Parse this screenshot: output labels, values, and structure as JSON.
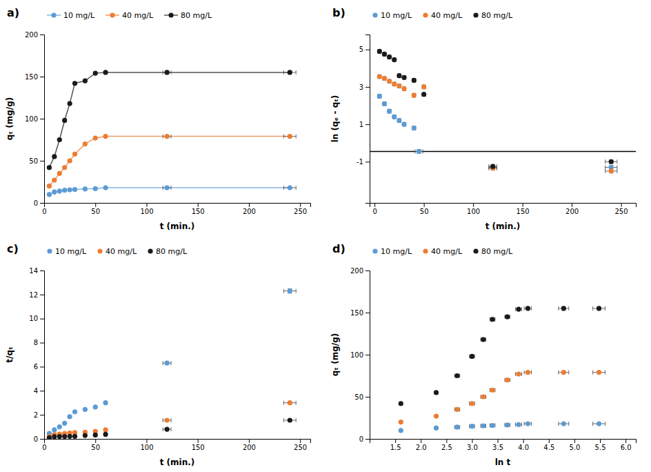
{
  "chart_data": [
    {
      "type": "line",
      "title": "a)",
      "xlabel": "t (min.)",
      "ylabel": "qₜ (mg/g)",
      "xlim": [
        0,
        260
      ],
      "ylim": [
        0,
        200
      ],
      "xticks": [
        0,
        50,
        100,
        150,
        200,
        250
      ],
      "yticks": [
        0,
        50,
        100,
        150,
        200
      ],
      "legend": "top",
      "series": [
        {
          "name": "10 mg/L",
          "color": "#5B9BD5",
          "x": [
            5,
            10,
            15,
            20,
            25,
            30,
            40,
            50,
            60,
            120,
            240
          ],
          "values": [
            10,
            13,
            14,
            15,
            15.5,
            16,
            16.5,
            17,
            18,
            18,
            18
          ],
          "xerr": [
            0,
            0,
            0,
            0,
            0,
            0,
            0,
            0,
            0,
            4,
            6
          ],
          "yerr": [
            0.4,
            0.4,
            0.4,
            0.4,
            0.4,
            0.4,
            0.4,
            0.4,
            0.4,
            0.4,
            0.4
          ]
        },
        {
          "name": "40 mg/L",
          "color": "#ED7D31",
          "x": [
            5,
            10,
            15,
            20,
            25,
            30,
            40,
            50,
            60,
            120,
            240
          ],
          "values": [
            20,
            27,
            35,
            42,
            50,
            58,
            70,
            77,
            79,
            79,
            79
          ],
          "xerr": [
            0,
            0,
            0,
            0,
            0,
            0,
            0,
            0,
            0,
            4,
            6
          ],
          "yerr": [
            1,
            1,
            1,
            1,
            1,
            1,
            1,
            1,
            1,
            1,
            1
          ]
        },
        {
          "name": "80 mg/L",
          "color": "#1a1a1a",
          "x": [
            5,
            10,
            15,
            20,
            25,
            30,
            40,
            50,
            60,
            120,
            240
          ],
          "values": [
            42,
            55,
            75,
            98,
            118,
            142,
            145,
            154,
            155,
            155,
            155
          ],
          "xerr": [
            0,
            0,
            0,
            0,
            0,
            0,
            0,
            0,
            0,
            4,
            6
          ],
          "yerr": [
            1.5,
            1.5,
            1.5,
            1.5,
            1.5,
            1.5,
            1.5,
            1.5,
            1.5,
            1.5,
            1.5
          ]
        }
      ]
    },
    {
      "type": "scatter",
      "title": "b)",
      "xlabel": "t (min.)",
      "ylabel": "ln (qₑ - qₜ)",
      "xlim": [
        -5,
        265
      ],
      "ylim": [
        -3.2,
        5.8
      ],
      "xticks": [
        0,
        50,
        100,
        150,
        200,
        250
      ],
      "yticks": [
        -1,
        1,
        3,
        5
      ],
      "hline_y": -0.45,
      "legend": "top",
      "series": [
        {
          "name": "10 mg/L",
          "color": "#5B9BD5",
          "x": [
            5,
            10,
            15,
            20,
            25,
            30,
            40,
            45,
            120,
            240
          ],
          "values": [
            2.5,
            2.1,
            1.7,
            1.4,
            1.2,
            1.0,
            0.8,
            -0.45,
            -1.3,
            -1.3
          ],
          "xerr": [
            0,
            0,
            0,
            0,
            0,
            0,
            0,
            4,
            4,
            6
          ],
          "yerr": [
            0.1,
            0.1,
            0.1,
            0.1,
            0.1,
            0.1,
            0.1,
            0.1,
            0.1,
            0.1
          ]
        },
        {
          "name": "40 mg/L",
          "color": "#ED7D31",
          "x": [
            5,
            10,
            15,
            20,
            25,
            30,
            40,
            50,
            120,
            240
          ],
          "values": [
            3.55,
            3.45,
            3.3,
            3.15,
            3.05,
            2.9,
            2.55,
            3.0,
            -1.35,
            -1.5
          ],
          "xerr": [
            0,
            0,
            0,
            0,
            0,
            0,
            0,
            0,
            4,
            6
          ],
          "yerr": [
            0.1,
            0.1,
            0.1,
            0.1,
            0.1,
            0.1,
            0.1,
            0.1,
            0.1,
            0.1
          ]
        },
        {
          "name": "80 mg/L",
          "color": "#1a1a1a",
          "x": [
            5,
            10,
            15,
            20,
            25,
            30,
            40,
            50,
            120,
            240
          ],
          "values": [
            4.9,
            4.75,
            4.6,
            4.45,
            3.6,
            3.5,
            3.35,
            2.6,
            -1.25,
            -1.0
          ],
          "xerr": [
            0,
            0,
            0,
            0,
            0,
            0,
            0,
            0,
            4,
            6
          ],
          "yerr": [
            0.1,
            0.1,
            0.1,
            0.1,
            0.1,
            0.1,
            0.1,
            0.1,
            0.1,
            0.1
          ]
        }
      ]
    },
    {
      "type": "scatter",
      "title": "c)",
      "xlabel": "t (min.)",
      "ylabel": "t/qₜ",
      "xlim": [
        0,
        260
      ],
      "ylim": [
        0,
        14
      ],
      "xticks": [
        0,
        50,
        100,
        150,
        200,
        250
      ],
      "yticks": [
        0,
        2,
        4,
        6,
        8,
        10,
        12,
        14
      ],
      "legend": "top",
      "series": [
        {
          "name": "10 mg/L",
          "color": "#5B9BD5",
          "x": [
            5,
            10,
            15,
            20,
            25,
            30,
            40,
            50,
            60,
            120,
            240
          ],
          "values": [
            0.45,
            0.75,
            1.0,
            1.3,
            1.85,
            2.25,
            2.45,
            2.65,
            3.0,
            6.3,
            12.3
          ],
          "xerr": [
            0,
            0,
            0,
            0,
            0,
            0,
            0,
            0,
            0,
            4,
            6
          ],
          "yerr": [
            0.05,
            0.05,
            0.05,
            0.05,
            0.05,
            0.05,
            0.05,
            0.05,
            0.05,
            0.12,
            0.18
          ]
        },
        {
          "name": "40 mg/L",
          "color": "#ED7D31",
          "x": [
            5,
            10,
            15,
            20,
            25,
            30,
            40,
            50,
            60,
            120,
            240
          ],
          "values": [
            0.2,
            0.35,
            0.4,
            0.45,
            0.5,
            0.52,
            0.56,
            0.62,
            0.75,
            1.55,
            3.0
          ],
          "xerr": [
            0,
            0,
            0,
            0,
            0,
            0,
            0,
            0,
            0,
            4,
            6
          ],
          "yerr": [
            0.02,
            0.02,
            0.02,
            0.02,
            0.02,
            0.02,
            0.02,
            0.02,
            0.02,
            0.06,
            0.1
          ]
        },
        {
          "name": "80 mg/L",
          "color": "#1a1a1a",
          "x": [
            5,
            10,
            15,
            20,
            25,
            30,
            40,
            50,
            60,
            120,
            240
          ],
          "values": [
            0.1,
            0.18,
            0.2,
            0.2,
            0.21,
            0.21,
            0.28,
            0.32,
            0.38,
            0.8,
            1.55
          ],
          "xerr": [
            0,
            0,
            0,
            0,
            0,
            0,
            0,
            0,
            0,
            4,
            6
          ],
          "yerr": [
            0.01,
            0.01,
            0.01,
            0.01,
            0.01,
            0.01,
            0.01,
            0.01,
            0.01,
            0.04,
            0.06
          ]
        }
      ]
    },
    {
      "type": "scatter",
      "title": "d)",
      "xlabel": "ln t",
      "ylabel": "qₜ (mg/g)",
      "xlim": [
        1.0,
        6.2
      ],
      "ylim": [
        0,
        200
      ],
      "xticks": [
        1.5,
        {
          "value": 2.0,
          "label": "2.0"
        },
        2.5,
        {
          "value": 3.0,
          "label": "3.0"
        },
        3.5,
        {
          "value": 4.0,
          "label": "4.0"
        },
        4.5,
        {
          "value": 5.0,
          "label": "5.0"
        },
        5.5,
        {
          "value": 6.0,
          "label": "6.0"
        }
      ],
      "yticks": [
        0,
        50,
        100,
        150,
        200
      ],
      "legend": "top",
      "series": [
        {
          "name": "10 mg/L",
          "color": "#5B9BD5",
          "x": [
            1.61,
            2.3,
            2.71,
            3.0,
            3.22,
            3.4,
            3.69,
            3.91,
            4.09,
            4.79,
            5.48
          ],
          "values": [
            10,
            13,
            14,
            15,
            15.5,
            16,
            16.5,
            17,
            18,
            18,
            18
          ],
          "xerr": [
            0,
            0,
            0.05,
            0.05,
            0.05,
            0.05,
            0.05,
            0.06,
            0.07,
            0.1,
            0.12
          ],
          "yerr": [
            0.5,
            0.5,
            0.5,
            0.5,
            0.5,
            0.5,
            0.5,
            0.5,
            0.5,
            0.5,
            0.5
          ]
        },
        {
          "name": "40 mg/L",
          "color": "#ED7D31",
          "x": [
            1.61,
            2.3,
            2.71,
            3.0,
            3.22,
            3.4,
            3.69,
            3.91,
            4.09,
            4.79,
            5.48
          ],
          "values": [
            20,
            27,
            35,
            42,
            50,
            58,
            70,
            77,
            79,
            79,
            79
          ],
          "xerr": [
            0,
            0,
            0.05,
            0.05,
            0.05,
            0.05,
            0.05,
            0.06,
            0.07,
            0.1,
            0.12
          ],
          "yerr": [
            1,
            1,
            1,
            1,
            1,
            1,
            1,
            1,
            1,
            1,
            1
          ]
        },
        {
          "name": "80 mg/L",
          "color": "#1a1a1a",
          "x": [
            1.61,
            2.3,
            2.71,
            3.0,
            3.22,
            3.4,
            3.69,
            3.91,
            4.09,
            4.79,
            5.48
          ],
          "values": [
            42,
            55,
            75,
            98,
            118,
            142,
            145,
            154,
            155,
            155,
            155
          ],
          "xerr": [
            0,
            0,
            0.05,
            0.05,
            0.05,
            0.05,
            0.05,
            0.06,
            0.07,
            0.1,
            0.12
          ],
          "yerr": [
            1.5,
            1.5,
            1.5,
            1.5,
            1.5,
            1.5,
            1.5,
            1.5,
            1.5,
            1.5,
            1.5
          ]
        }
      ]
    }
  ]
}
